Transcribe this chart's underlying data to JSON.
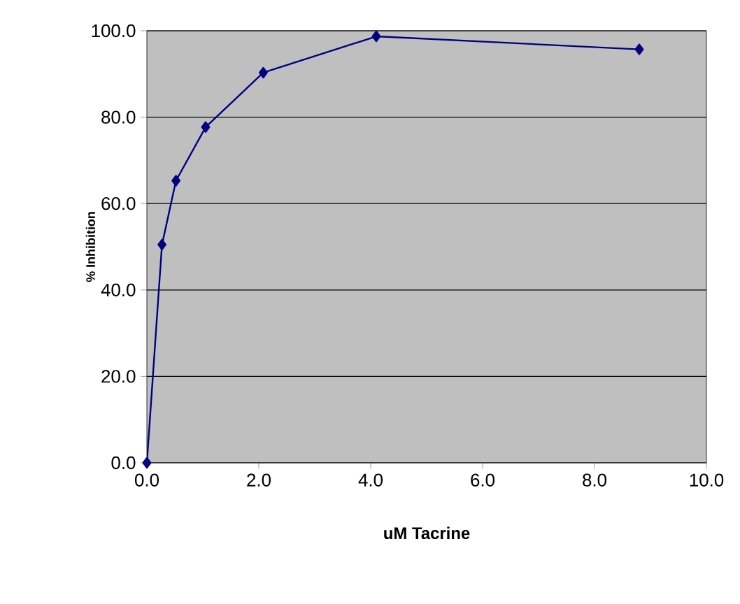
{
  "chart_data": {
    "type": "line",
    "xlabel": "uM Tacrine",
    "ylabel": "% Inhibition",
    "x": [
      0,
      0.27,
      0.52,
      1.05,
      2.08,
      4.1,
      8.8
    ],
    "series": [
      {
        "color": "#000080",
        "values": [
          0,
          50.5,
          65.3,
          77.7,
          90.3,
          98.7,
          95.7
        ]
      }
    ],
    "xlim": [
      0,
      10
    ],
    "ylim": [
      0,
      100
    ],
    "xticks": [
      {
        "value": 0,
        "label": "0.0"
      },
      {
        "value": 2,
        "label": "2.0"
      },
      {
        "value": 4,
        "label": "4.0"
      },
      {
        "value": 6,
        "label": "6.0"
      },
      {
        "value": 8,
        "label": "8.0"
      },
      {
        "value": 10,
        "label": "10.0"
      }
    ],
    "yticks": [
      {
        "value": 0,
        "label": "0.0"
      },
      {
        "value": 20,
        "label": "20.0"
      },
      {
        "value": 40,
        "label": "40.0"
      },
      {
        "value": 60,
        "label": "60.0"
      },
      {
        "value": 80,
        "label": "80.0"
      },
      {
        "value": 100,
        "label": "100.0"
      }
    ],
    "grid": "y",
    "marker": "diamond",
    "line_style": "solid"
  }
}
